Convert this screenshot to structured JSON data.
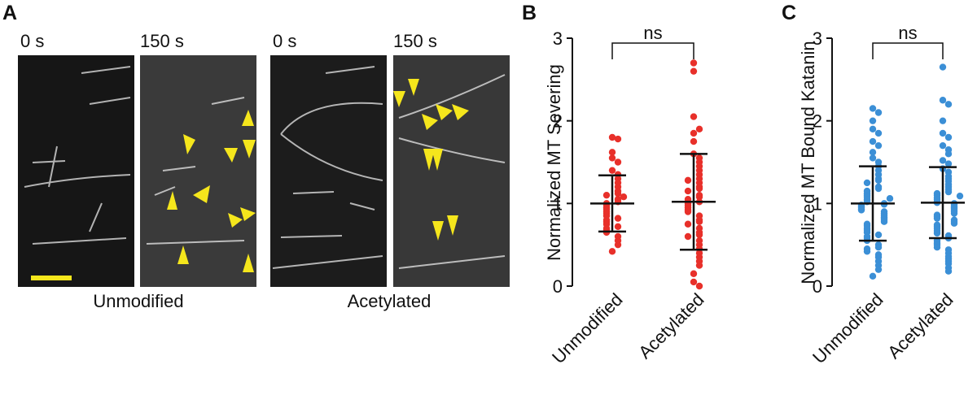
{
  "figure_a": {
    "panel_label": "A",
    "images": [
      {
        "label": "0 s"
      },
      {
        "label": "150 s"
      },
      {
        "label": "0 s"
      },
      {
        "label": "150 s"
      }
    ],
    "conditions": [
      "Unmodified",
      "Acetylated"
    ]
  },
  "chart_data": [
    {
      "type": "dot",
      "panel_label": "B",
      "ylabel": "Normalized MT Severing",
      "categories": [
        "Unmodified",
        "Acetylated"
      ],
      "color": "#e8302a",
      "groups": [
        {
          "values": [
            1.8,
            1.78,
            1.62,
            1.55,
            1.5,
            1.4,
            1.35,
            1.3,
            1.25,
            1.2,
            1.15,
            1.12,
            1.1,
            1.05,
            1.02,
            1.0,
            0.98,
            0.95,
            0.93,
            0.9,
            0.88,
            0.85,
            0.82,
            0.8,
            0.78,
            0.75,
            0.72,
            0.7,
            0.68,
            0.65,
            0.6,
            0.55,
            0.5,
            0.42,
            1.08
          ],
          "mean": 1.0,
          "sd": 0.34
        },
        {
          "values": [
            2.7,
            2.6,
            2.05,
            1.85,
            1.75,
            1.6,
            1.55,
            1.5,
            1.45,
            1.4,
            1.35,
            1.3,
            1.25,
            1.2,
            1.18,
            1.15,
            1.1,
            1.08,
            1.05,
            1.02,
            1.0,
            0.98,
            0.95,
            0.92,
            0.9,
            0.85,
            0.8,
            0.78,
            0.75,
            0.7,
            0.65,
            0.62,
            0.6,
            0.55,
            0.5,
            0.45,
            0.4,
            0.35,
            0.3,
            0.25,
            0.15,
            0.05,
            0.0,
            1.9,
            1.28
          ],
          "mean": 1.02,
          "sd": 0.58
        }
      ],
      "ylim": [
        0,
        3
      ],
      "yticks": [
        0,
        1,
        2,
        3
      ],
      "annotation": "ns"
    },
    {
      "type": "dot",
      "panel_label": "C",
      "ylabel": "Normalized MT Bound Katanin",
      "categories": [
        "Unmodified",
        "Acetylated"
      ],
      "color": "#3b8fd6",
      "groups": [
        {
          "values": [
            2.15,
            2.1,
            2.0,
            1.9,
            1.85,
            1.75,
            1.7,
            1.62,
            1.55,
            1.5,
            1.45,
            1.4,
            1.35,
            1.3,
            1.28,
            1.25,
            1.2,
            1.18,
            1.15,
            1.12,
            1.1,
            1.08,
            1.05,
            1.03,
            1.02,
            1.0,
            0.99,
            0.98,
            0.97,
            0.95,
            0.93,
            0.92,
            0.9,
            0.88,
            0.87,
            0.85,
            0.83,
            0.82,
            0.8,
            0.78,
            0.75,
            0.73,
            0.7,
            0.68,
            0.65,
            0.62,
            0.6,
            0.58,
            0.55,
            0.5,
            0.47,
            0.45,
            0.42,
            0.38,
            0.35,
            0.3,
            0.25,
            0.2,
            0.12,
            1.06
          ],
          "mean": 1.0,
          "sd": 0.45
        },
        {
          "values": [
            2.65,
            2.25,
            2.2,
            2.0,
            1.85,
            1.8,
            1.7,
            1.65,
            1.6,
            1.52,
            1.48,
            1.42,
            1.38,
            1.33,
            1.3,
            1.27,
            1.23,
            1.2,
            1.17,
            1.14,
            1.12,
            1.1,
            1.07,
            1.05,
            1.03,
            1.01,
            1.0,
            0.99,
            0.97,
            0.95,
            0.94,
            0.92,
            0.9,
            0.88,
            0.86,
            0.84,
            0.82,
            0.8,
            0.78,
            0.76,
            0.74,
            0.72,
            0.7,
            0.67,
            0.64,
            0.61,
            0.58,
            0.55,
            0.52,
            0.5,
            0.47,
            0.44,
            0.4,
            0.36,
            0.33,
            0.3,
            0.27,
            0.22,
            0.18,
            1.09
          ],
          "mean": 1.01,
          "sd": 0.43
        }
      ],
      "ylim": [
        0,
        3
      ],
      "yticks": [
        0,
        1,
        2,
        3
      ],
      "annotation": "ns"
    }
  ]
}
